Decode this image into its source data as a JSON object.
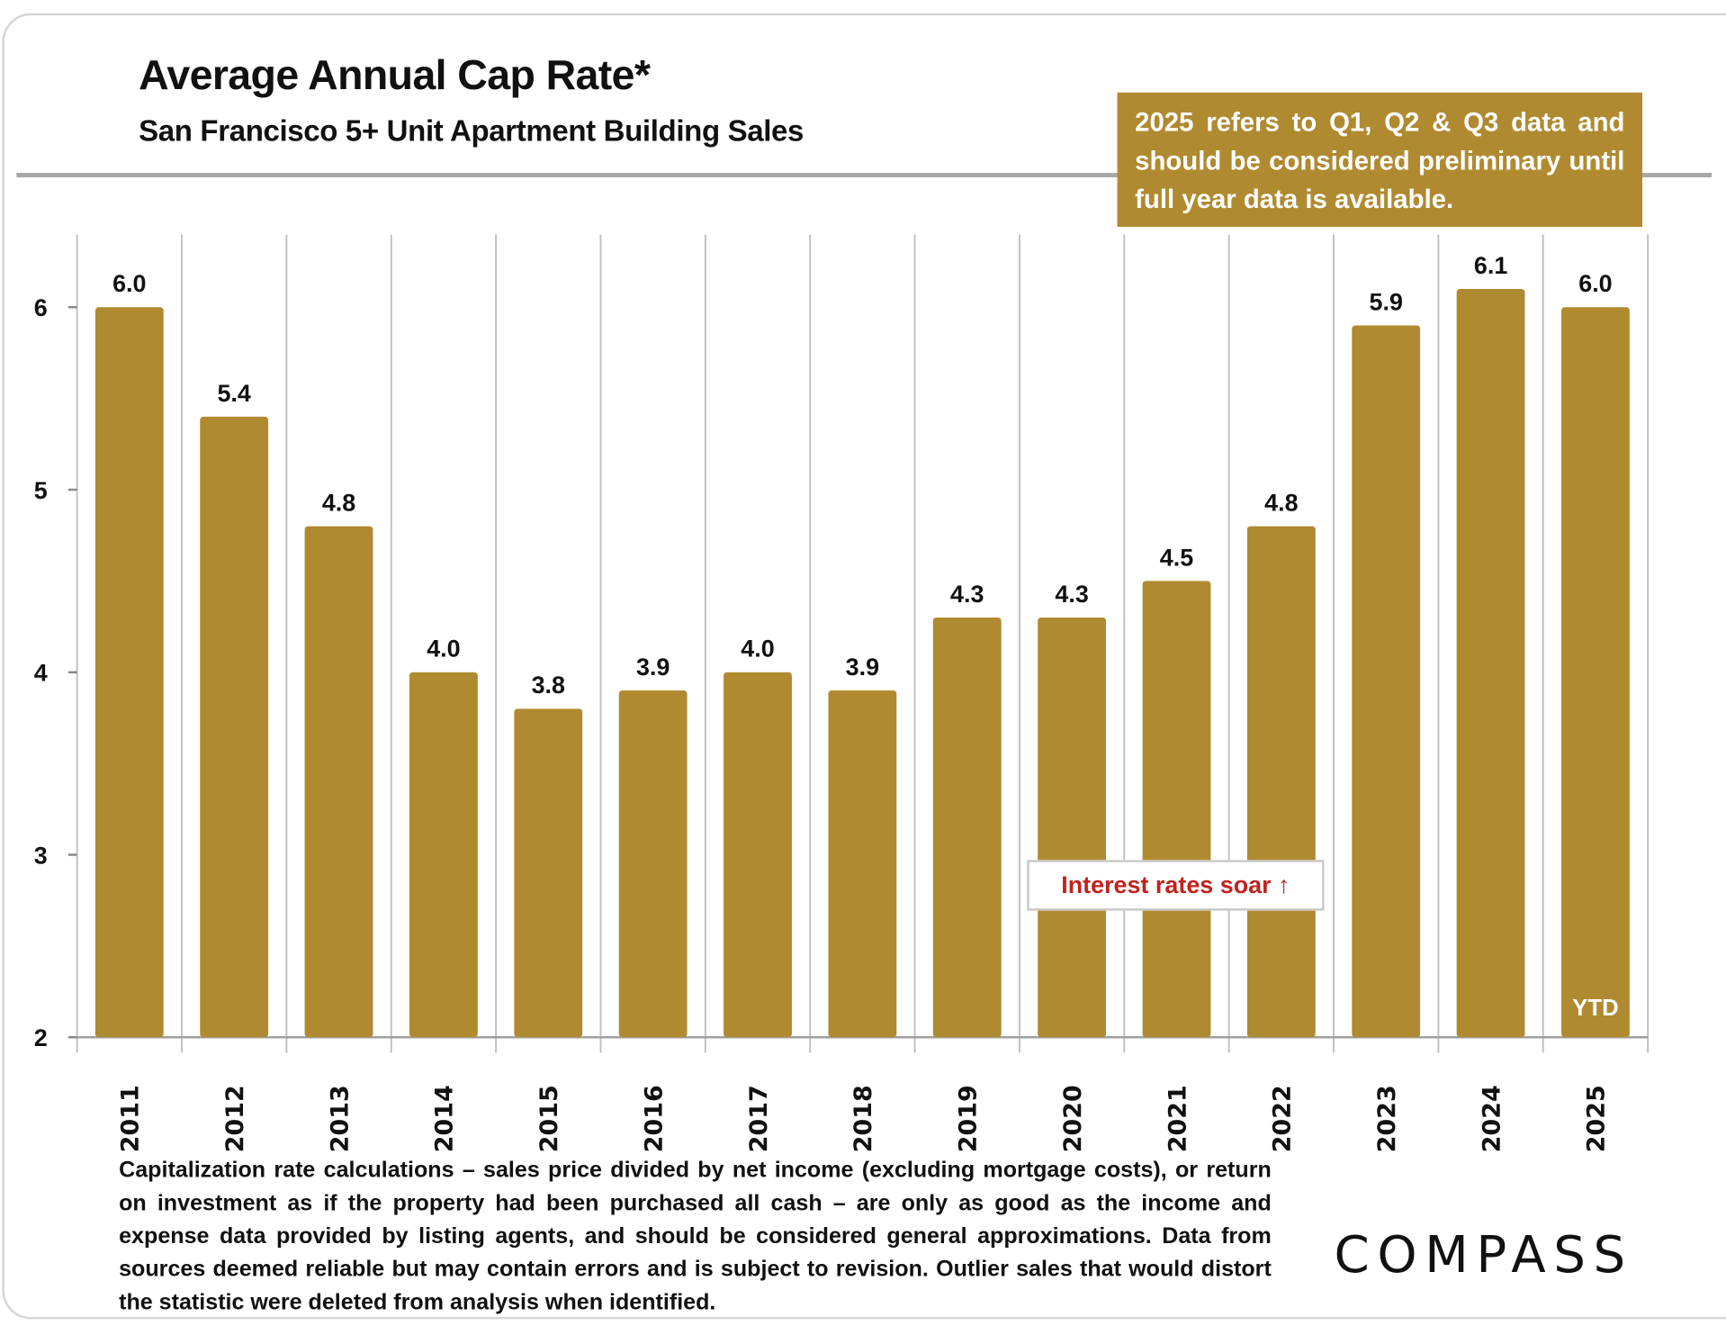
{
  "chart_data": {
    "type": "bar",
    "title": "Average Annual Cap Rate*",
    "subtitle": "San Francisco 5+ Unit Apartment Building Sales",
    "categories": [
      "2011",
      "2012",
      "2013",
      "2014",
      "2015",
      "2016",
      "2017",
      "2018",
      "2019",
      "2020",
      "2021",
      "2022",
      "2023",
      "2024",
      "2025"
    ],
    "values": [
      6.0,
      5.4,
      4.8,
      4.0,
      3.8,
      3.9,
      4.0,
      3.9,
      4.3,
      4.3,
      4.5,
      4.8,
      5.9,
      6.1,
      6.0
    ],
    "data_labels": [
      "6.0",
      "5.4",
      "4.8",
      "4.0",
      "3.8",
      "3.9",
      "4.0",
      "3.9",
      "4.3",
      "4.3",
      "4.5",
      "4.8",
      "5.9",
      "6.1",
      "6.0"
    ],
    "yticks": [
      "2",
      "3",
      "4",
      "5",
      "6"
    ],
    "ylim": [
      2,
      6.4
    ],
    "xlabel": "",
    "ylabel": "",
    "grid": "vertical category separators",
    "bar_color": "#b08a30",
    "bar_inner_label": {
      "category": "2025",
      "text": "YTD"
    },
    "annotation": "Interest rates soar ↑",
    "annotation_color": "#c0231f"
  },
  "note": "2025 refers to Q1, Q2 & Q3 data and should be considered preliminary until full year data is available.",
  "footnote": "Capitalization rate calculations – sales price divided by net income (excluding mortgage costs), or return on investment as if the property had been purchased all cash – are only as good as the income and expense data provided by listing agents, and should be considered general approximations. Data from sources deemed reliable but may contain errors and is subject to revision. Outlier sales that would distort the statistic were deleted from analysis when identified.",
  "logo": "COMPASS"
}
